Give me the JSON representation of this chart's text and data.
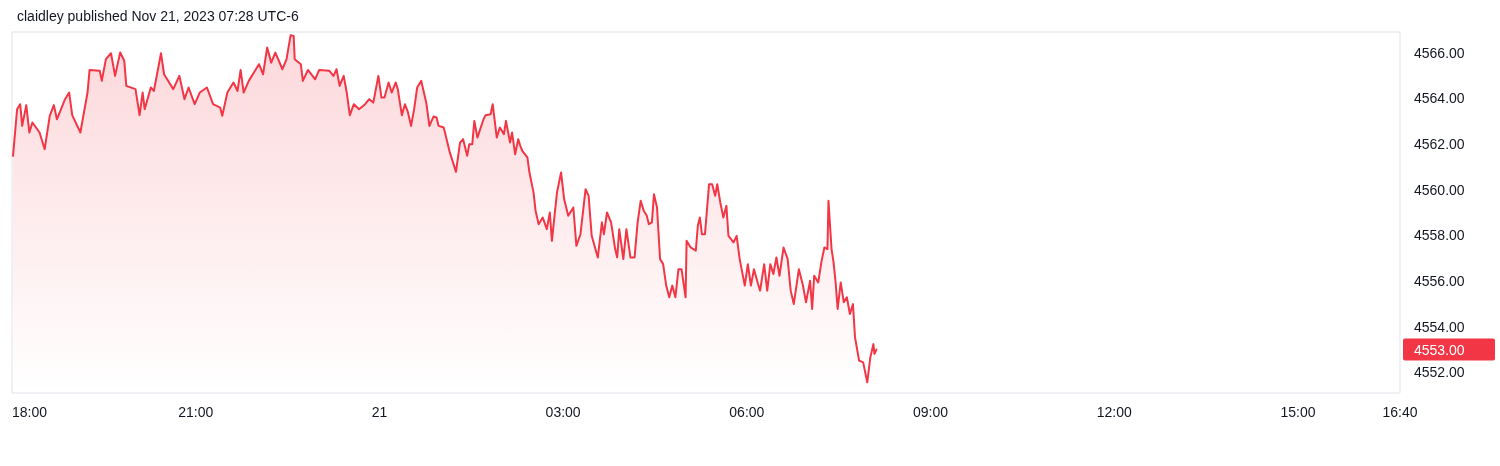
{
  "chart_data": {
    "type": "area",
    "title": "claidley published Nov 21, 2023 07:28 UTC-6",
    "xlim": [
      "2023-11-20T18:00",
      "2023-11-21T16:40"
    ],
    "ylim": [
      4551.1,
      4566.9
    ],
    "xticks": [
      {
        "value": "2023-11-20T18:00",
        "label": "18:00"
      },
      {
        "value": "2023-11-20T21:00",
        "label": "21:00"
      },
      {
        "value": "2023-11-21T00:00",
        "label": "21"
      },
      {
        "value": "2023-11-21T03:00",
        "label": "03:00"
      },
      {
        "value": "2023-11-21T06:00",
        "label": "06:00"
      },
      {
        "value": "2023-11-21T09:00",
        "label": "09:00"
      },
      {
        "value": "2023-11-21T12:00",
        "label": "12:00"
      },
      {
        "value": "2023-11-21T15:00",
        "label": "15:00"
      },
      {
        "value": "2023-11-21T16:40",
        "label": "16:40"
      }
    ],
    "yticks": [
      {
        "value": 4552,
        "label": "4552.00"
      },
      {
        "value": 4554,
        "label": "4554.00"
      },
      {
        "value": 4556,
        "label": "4556.00"
      },
      {
        "value": 4558,
        "label": "4558.00"
      },
      {
        "value": 4560,
        "label": "4560.00"
      },
      {
        "value": 4562,
        "label": "4562.00"
      },
      {
        "value": 4564,
        "label": "4564.00"
      },
      {
        "value": 4566,
        "label": "4566.00"
      }
    ],
    "annotations": [
      "4553.00"
    ],
    "series": [
      {
        "color": "#f23645",
        "x": [
          "2023-11-20T18:01",
          "2023-11-20T18:05",
          "2023-11-20T18:08",
          "2023-11-20T18:10",
          "2023-11-20T18:14",
          "2023-11-20T18:17",
          "2023-11-20T18:20",
          "2023-11-20T18:27",
          "2023-11-20T18:32",
          "2023-11-20T18:37",
          "2023-11-20T18:41",
          "2023-11-20T18:44",
          "2023-11-20T18:52",
          "2023-11-20T18:56",
          "2023-11-20T18:59",
          "2023-11-20T19:07",
          "2023-11-20T19:14",
          "2023-11-20T19:16",
          "2023-11-20T19:26",
          "2023-11-20T19:28",
          "2023-11-20T19:32",
          "2023-11-20T19:37",
          "2023-11-20T19:41",
          "2023-11-20T19:46",
          "2023-11-20T19:50",
          "2023-11-20T19:52",
          "2023-11-20T20:01",
          "2023-11-20T20:05",
          "2023-11-20T20:08",
          "2023-11-20T20:10",
          "2023-11-20T20:16",
          "2023-11-20T20:19",
          "2023-11-20T20:26",
          "2023-11-20T20:29",
          "2023-11-20T20:38",
          "2023-11-20T20:44",
          "2023-11-20T20:49",
          "2023-11-20T20:53",
          "2023-11-20T20:59",
          "2023-11-20T21:04",
          "2023-11-20T21:11",
          "2023-11-20T21:17",
          "2023-11-20T21:24",
          "2023-11-20T21:26",
          "2023-11-20T21:31",
          "2023-11-20T21:37",
          "2023-11-20T21:41",
          "2023-11-20T21:44",
          "2023-11-20T21:47",
          "2023-11-20T21:52",
          "2023-11-20T22:02",
          "2023-11-20T22:06",
          "2023-11-20T22:10",
          "2023-11-20T22:14",
          "2023-11-20T22:18",
          "2023-11-20T22:25",
          "2023-11-20T22:29",
          "2023-11-20T22:33",
          "2023-11-20T22:36",
          "2023-11-20T22:37",
          "2023-11-20T22:43",
          "2023-11-20T22:45",
          "2023-11-20T22:50",
          "2023-11-20T22:57",
          "2023-11-20T23:01",
          "2023-11-20T23:11",
          "2023-11-20T23:15",
          "2023-11-20T23:18",
          "2023-11-20T23:21",
          "2023-11-20T23:25",
          "2023-11-20T23:28",
          "2023-11-20T23:31",
          "2023-11-20T23:35",
          "2023-11-20T23:40",
          "2023-11-20T23:46",
          "2023-11-20T23:50",
          "2023-11-20T23:54",
          "2023-11-20T23:59",
          "2023-11-21T00:02",
          "2023-11-21T00:05",
          "2023-11-21T00:09",
          "2023-11-21T00:12",
          "2023-11-21T00:16",
          "2023-11-21T00:18",
          "2023-11-21T00:22",
          "2023-11-21T00:25",
          "2023-11-21T00:28",
          "2023-11-21T00:31",
          "2023-11-21T00:34",
          "2023-11-21T00:37",
          "2023-11-21T00:41",
          "2023-11-21T00:46",
          "2023-11-21T00:49",
          "2023-11-21T00:53",
          "2023-11-21T00:56",
          "2023-11-21T00:58",
          "2023-11-21T01:03",
          "2023-11-21T01:09",
          "2023-11-21T01:15",
          "2023-11-21T01:19",
          "2023-11-21T01:22",
          "2023-11-21T01:26",
          "2023-11-21T01:28",
          "2023-11-21T01:31",
          "2023-11-21T01:33",
          "2023-11-21T01:36",
          "2023-11-21T01:42",
          "2023-11-21T01:44",
          "2023-11-21T01:49",
          "2023-11-21T01:51",
          "2023-11-21T01:55",
          "2023-11-21T01:58",
          "2023-11-21T02:02",
          "2023-11-21T02:04",
          "2023-11-21T02:08",
          "2023-11-21T02:10",
          "2023-11-21T02:13",
          "2023-11-21T02:16",
          "2023-11-21T02:18",
          "2023-11-21T02:20",
          "2023-11-21T02:25",
          "2023-11-21T02:27",
          "2023-11-21T02:31",
          "2023-11-21T02:33",
          "2023-11-21T02:36",
          "2023-11-21T02:40",
          "2023-11-21T02:44",
          "2023-11-21T02:47",
          "2023-11-21T02:49",
          "2023-11-21T02:54",
          "2023-11-21T02:58",
          "2023-11-21T03:01",
          "2023-11-21T03:05",
          "2023-11-21T03:10",
          "2023-11-21T03:13",
          "2023-11-21T03:17",
          "2023-11-21T03:22",
          "2023-11-21T03:25",
          "2023-11-21T03:28",
          "2023-11-21T03:34",
          "2023-11-21T03:38",
          "2023-11-21T03:40",
          "2023-11-21T03:43",
          "2023-11-21T03:47",
          "2023-11-21T03:51",
          "2023-11-21T03:53",
          "2023-11-21T03:55",
          "2023-11-21T03:59",
          "2023-11-21T04:02",
          "2023-11-21T04:06",
          "2023-11-21T04:10",
          "2023-11-21T04:13",
          "2023-11-21T04:16",
          "2023-11-21T04:19",
          "2023-11-21T04:22",
          "2023-11-21T04:24",
          "2023-11-21T04:27",
          "2023-11-21T04:29",
          "2023-11-21T04:32",
          "2023-11-21T04:35",
          "2023-11-21T04:38",
          "2023-11-21T04:41",
          "2023-11-21T04:44",
          "2023-11-21T04:47",
          "2023-11-21T04:50",
          "2023-11-21T04:53",
          "2023-11-21T04:56",
          "2023-11-21T05:00",
          "2023-11-21T05:01",
          "2023-11-21T05:05",
          "2023-11-21T05:10",
          "2023-11-21T05:12",
          "2023-11-21T05:14",
          "2023-11-21T05:16",
          "2023-11-21T05:19",
          "2023-11-21T05:23",
          "2023-11-21T05:26",
          "2023-11-21T05:29",
          "2023-11-21T05:31",
          "2023-11-21T05:34",
          "2023-11-21T05:37",
          "2023-11-21T05:40",
          "2023-11-21T05:42",
          "2023-11-21T05:47",
          "2023-11-21T05:50",
          "2023-11-21T05:53",
          "2023-11-21T05:58",
          "2023-11-21T06:01",
          "2023-11-21T06:04",
          "2023-11-21T06:07",
          "2023-11-21T06:11",
          "2023-11-21T06:13",
          "2023-11-21T06:17",
          "2023-11-21T06:20",
          "2023-11-21T06:23",
          "2023-11-21T06:26",
          "2023-11-21T06:29",
          "2023-11-21T06:32",
          "2023-11-21T06:36",
          "2023-11-21T06:40",
          "2023-11-21T06:43",
          "2023-11-21T06:46",
          "2023-11-21T06:51",
          "2023-11-21T06:55",
          "2023-11-21T06:58",
          "2023-11-21T07:02",
          "2023-11-21T07:04",
          "2023-11-21T07:06",
          "2023-11-21T07:10",
          "2023-11-21T07:13",
          "2023-11-21T07:16",
          "2023-11-21T07:19",
          "2023-11-21T07:20",
          "2023-11-21T07:23",
          "2023-11-21T07:25",
          "2023-11-21T07:27",
          "2023-11-21T07:29",
          "2023-11-21T07:32",
          "2023-11-21T07:35",
          "2023-11-21T07:38",
          "2023-11-21T07:41",
          "2023-11-21T07:44",
          "2023-11-21T07:46",
          "2023-11-21T07:50",
          "2023-11-21T07:54",
          "2023-11-21T07:58",
          "2023-11-21T08:01",
          "2023-11-21T08:04",
          "2023-11-21T08:05",
          "2023-11-21T08:07"
        ],
        "values": [
          4561.48,
          4563.52,
          4563.74,
          4562.79,
          4563.7,
          4562.5,
          4562.94,
          4562.5,
          4561.77,
          4563.23,
          4563.7,
          4563.08,
          4563.96,
          4564.25,
          4563.26,
          4562.5,
          4564.25,
          4565.24,
          4565.2,
          4564.76,
          4565.71,
          4565.97,
          4564.98,
          4566.0,
          4565.64,
          4564.54,
          4564.4,
          4563.26,
          4564.25,
          4563.52,
          4564.47,
          4564.32,
          4565.97,
          4565.05,
          4564.4,
          4564.98,
          4563.96,
          4564.47,
          4563.74,
          4564.25,
          4564.47,
          4563.74,
          4563.59,
          4563.23,
          4564.25,
          4564.69,
          4564.32,
          4565.24,
          4564.25,
          4564.76,
          4565.49,
          4565.05,
          4566.22,
          4565.56,
          4566.0,
          4565.27,
          4565.71,
          4566.76,
          4566.73,
          4565.71,
          4565.49,
          4564.76,
          4565.24,
          4564.83,
          4565.24,
          4565.2,
          4564.98,
          4565.27,
          4564.54,
          4564.98,
          4564.25,
          4563.26,
          4563.74,
          4563.52,
          4563.74,
          4563.96,
          4563.81,
          4564.98,
          4564.03,
          4564.03,
          4564.69,
          4564.25,
          4564.69,
          4564.4,
          4563.26,
          4563.74,
          4563.38,
          4562.79,
          4563.52,
          4564.47,
          4564.76,
          4563.78,
          4562.79,
          4563.2,
          4563.16,
          4562.79,
          4562.72,
          4561.63,
          4560.78,
          4562.06,
          4562.21,
          4561.48,
          4561.99,
          4561.99,
          4563.01,
          4562.28,
          4563.08,
          4563.26,
          4563.3,
          4563.74,
          4562.28,
          4562.72,
          4562.43,
          4563.01,
          4562.06,
          4562.5,
          4561.55,
          4562.21,
          4561.92,
          4561.7,
          4561.41,
          4560.75,
          4559.88,
          4559.08,
          4558.49,
          4558.78,
          4558.27,
          4559.0,
          4557.76,
          4559.88,
          4560.75,
          4559.59,
          4558.86,
          4559.22,
          4557.54,
          4558.05,
          4560.02,
          4559.73,
          4557.98,
          4557.03,
          4558.57,
          4558.05,
          4559.0,
          4558.57,
          4557.4,
          4557.03,
          4558.27,
          4556.96,
          4558.27,
          4557.03,
          4557.03,
          4558.57,
          4559.51,
          4559.08,
          4558.86,
          4558.49,
          4558.57,
          4559.8,
          4559.22,
          4556.96,
          4556.74,
          4555.8,
          4555.29,
          4555.8,
          4555.29,
          4556.52,
          4556.52,
          4555.29,
          4557.76,
          4557.47,
          4557.33,
          4558.42,
          4558.78,
          4558.05,
          4558.05,
          4560.24,
          4560.24,
          4559.73,
          4560.24,
          4559.44,
          4558.78,
          4559.29,
          4557.98,
          4557.69,
          4557.98,
          4556.96,
          4555.8,
          4556.74,
          4555.8,
          4556.52,
          4555.87,
          4555.58,
          4556.74,
          4555.58,
          4556.74,
          4556.31,
          4557.03,
          4556.23,
          4557.47,
          4556.96,
          4555.58,
          4554.99,
          4556.52,
          4555.8,
          4555.07,
          4556.01,
          4554.78,
          4556.23,
          4555.94,
          4556.82,
          4557.47,
          4557.4,
          4559.51,
          4557.4,
          4556.82,
          4555.94,
          4554.78,
          4555.94,
          4555.07,
          4555.29,
          4554.56,
          4554.99,
          4553.54,
          4552.52,
          4552.44,
          4551.57,
          4552.66,
          4553.24,
          4552.81,
          4553.0
        ]
      }
    ]
  }
}
